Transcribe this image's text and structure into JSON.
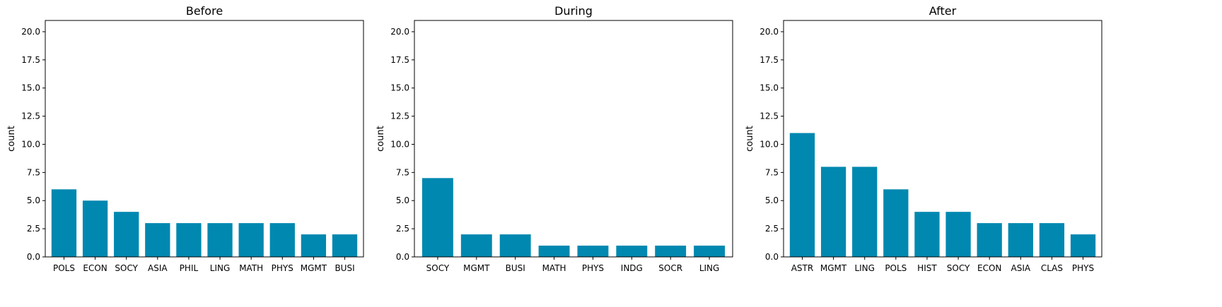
{
  "chart_data": [
    {
      "type": "bar",
      "title": "Before",
      "xlabel": "",
      "ylabel": "count",
      "ylim": [
        0,
        21
      ],
      "yticks": [
        "0.0",
        "2.5",
        "5.0",
        "7.5",
        "10.0",
        "12.5",
        "15.0",
        "17.5",
        "20.0"
      ],
      "categories": [
        "POLS",
        "ECON",
        "SOCY",
        "ASIA",
        "PHIL",
        "LING",
        "MATH",
        "PHYS",
        "MGMT",
        "BUSI"
      ],
      "values": [
        6,
        5,
        4,
        3,
        3,
        3,
        3,
        3,
        2,
        2
      ],
      "color": "#0088b0",
      "grid": false
    },
    {
      "type": "bar",
      "title": "During",
      "xlabel": "",
      "ylabel": "count",
      "ylim": [
        0,
        21
      ],
      "yticks": [
        "0.0",
        "2.5",
        "5.0",
        "7.5",
        "10.0",
        "12.5",
        "15.0",
        "17.5",
        "20.0"
      ],
      "categories": [
        "SOCY",
        "MGMT",
        "BUSI",
        "MATH",
        "PHYS",
        "INDG",
        "SOCR",
        "LING"
      ],
      "values": [
        7,
        2,
        2,
        1,
        1,
        1,
        1,
        1
      ],
      "color": "#0088b0",
      "grid": false
    },
    {
      "type": "bar",
      "title": "After",
      "xlabel": "",
      "ylabel": "count",
      "ylim": [
        0,
        21
      ],
      "yticks": [
        "0.0",
        "2.5",
        "5.0",
        "7.5",
        "10.0",
        "12.5",
        "15.0",
        "17.5",
        "20.0"
      ],
      "categories": [
        "ASTR",
        "MGMT",
        "LING",
        "POLS",
        "HIST",
        "SOCY",
        "ECON",
        "ASIA",
        "CLAS",
        "PHYS"
      ],
      "values": [
        11,
        8,
        8,
        6,
        4,
        4,
        3,
        3,
        3,
        2
      ],
      "color": "#0088b0",
      "grid": false
    }
  ]
}
